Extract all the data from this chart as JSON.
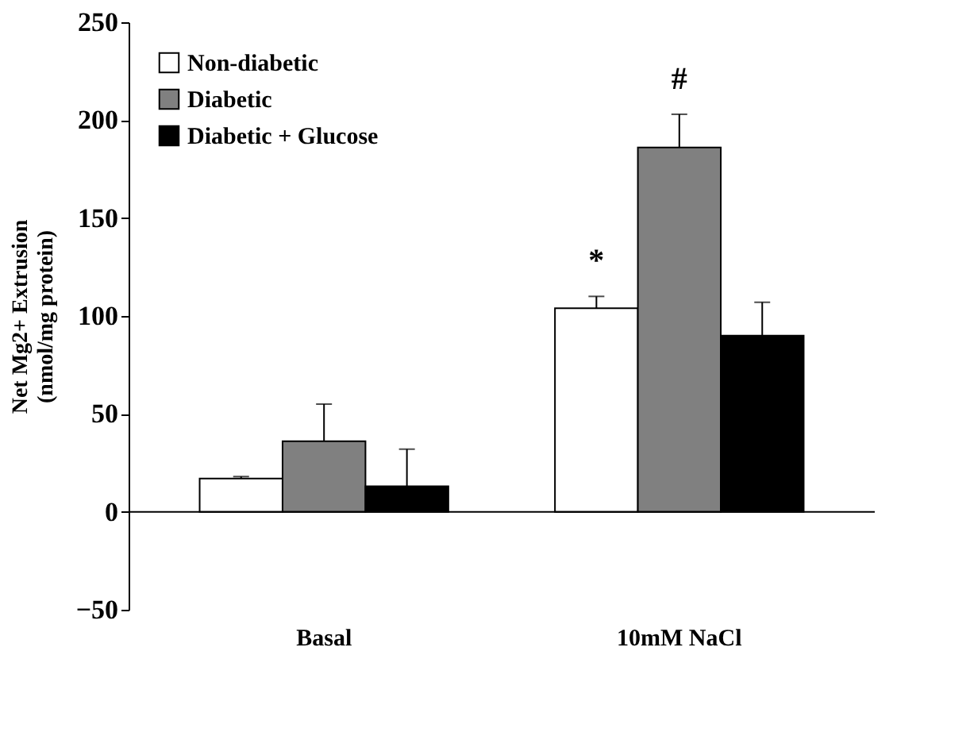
{
  "chart_data": {
    "type": "bar",
    "ylabel": "Net Mg2+ Extrusion\n(nmol/mg protein)",
    "categories": [
      "Basal",
      "10mM NaCl"
    ],
    "series": [
      {
        "name": "Non-diabetic",
        "color": "#ffffff",
        "values": [
          17,
          104
        ],
        "errors": [
          [
            17,
            18
          ],
          [
            104,
            110
          ]
        ]
      },
      {
        "name": "Diabetic",
        "color": "#808080",
        "values": [
          36,
          186
        ],
        "errors": [
          [
            36,
            55
          ],
          [
            186,
            203
          ]
        ]
      },
      {
        "name": "Diabetic + Glucose",
        "color": "#000000",
        "values": [
          13,
          90
        ],
        "errors": [
          [
            13,
            32
          ],
          [
            90,
            107
          ]
        ]
      }
    ],
    "ylim": [
      -50,
      250
    ],
    "yticks": [
      -50,
      0,
      50,
      100,
      150,
      200,
      250
    ],
    "annotations": [
      "*",
      "#"
    ],
    "ref_lines": [
      {
        "axis": "y",
        "value": 0,
        "color": "#000000"
      }
    ],
    "legend": "top left",
    "grid": false
  }
}
